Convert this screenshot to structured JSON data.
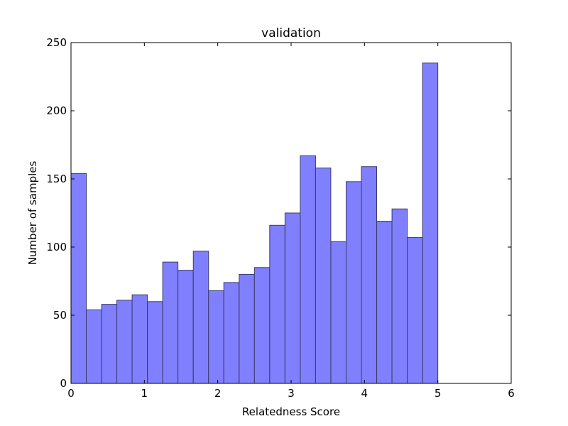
{
  "chart_data": {
    "type": "bar",
    "title": "validation",
    "xlabel": "Relatedness Score",
    "ylabel": "Number of samples",
    "xlim": [
      0,
      6
    ],
    "ylim": [
      0,
      250
    ],
    "xticks": [
      "0",
      "1",
      "2",
      "3",
      "4",
      "5",
      "6"
    ],
    "yticks": [
      "0",
      "50",
      "100",
      "150",
      "200",
      "250"
    ],
    "bin_width": 0.208,
    "bin_starts": [
      0,
      0.208,
      0.417,
      0.625,
      0.833,
      1.042,
      1.25,
      1.458,
      1.667,
      1.875,
      2.083,
      2.292,
      2.5,
      2.708,
      2.917,
      3.125,
      3.333,
      3.542,
      3.75,
      3.958,
      4.167,
      4.375,
      4.583,
      4.792
    ],
    "values": [
      154,
      54,
      58,
      61,
      65,
      60,
      89,
      83,
      97,
      68,
      74,
      80,
      85,
      116,
      125,
      167,
      158,
      104,
      148,
      159,
      119,
      128,
      107,
      235
    ],
    "bar_color": "#8080ff",
    "edge_color": "#3a3a6a",
    "grid": false
  }
}
